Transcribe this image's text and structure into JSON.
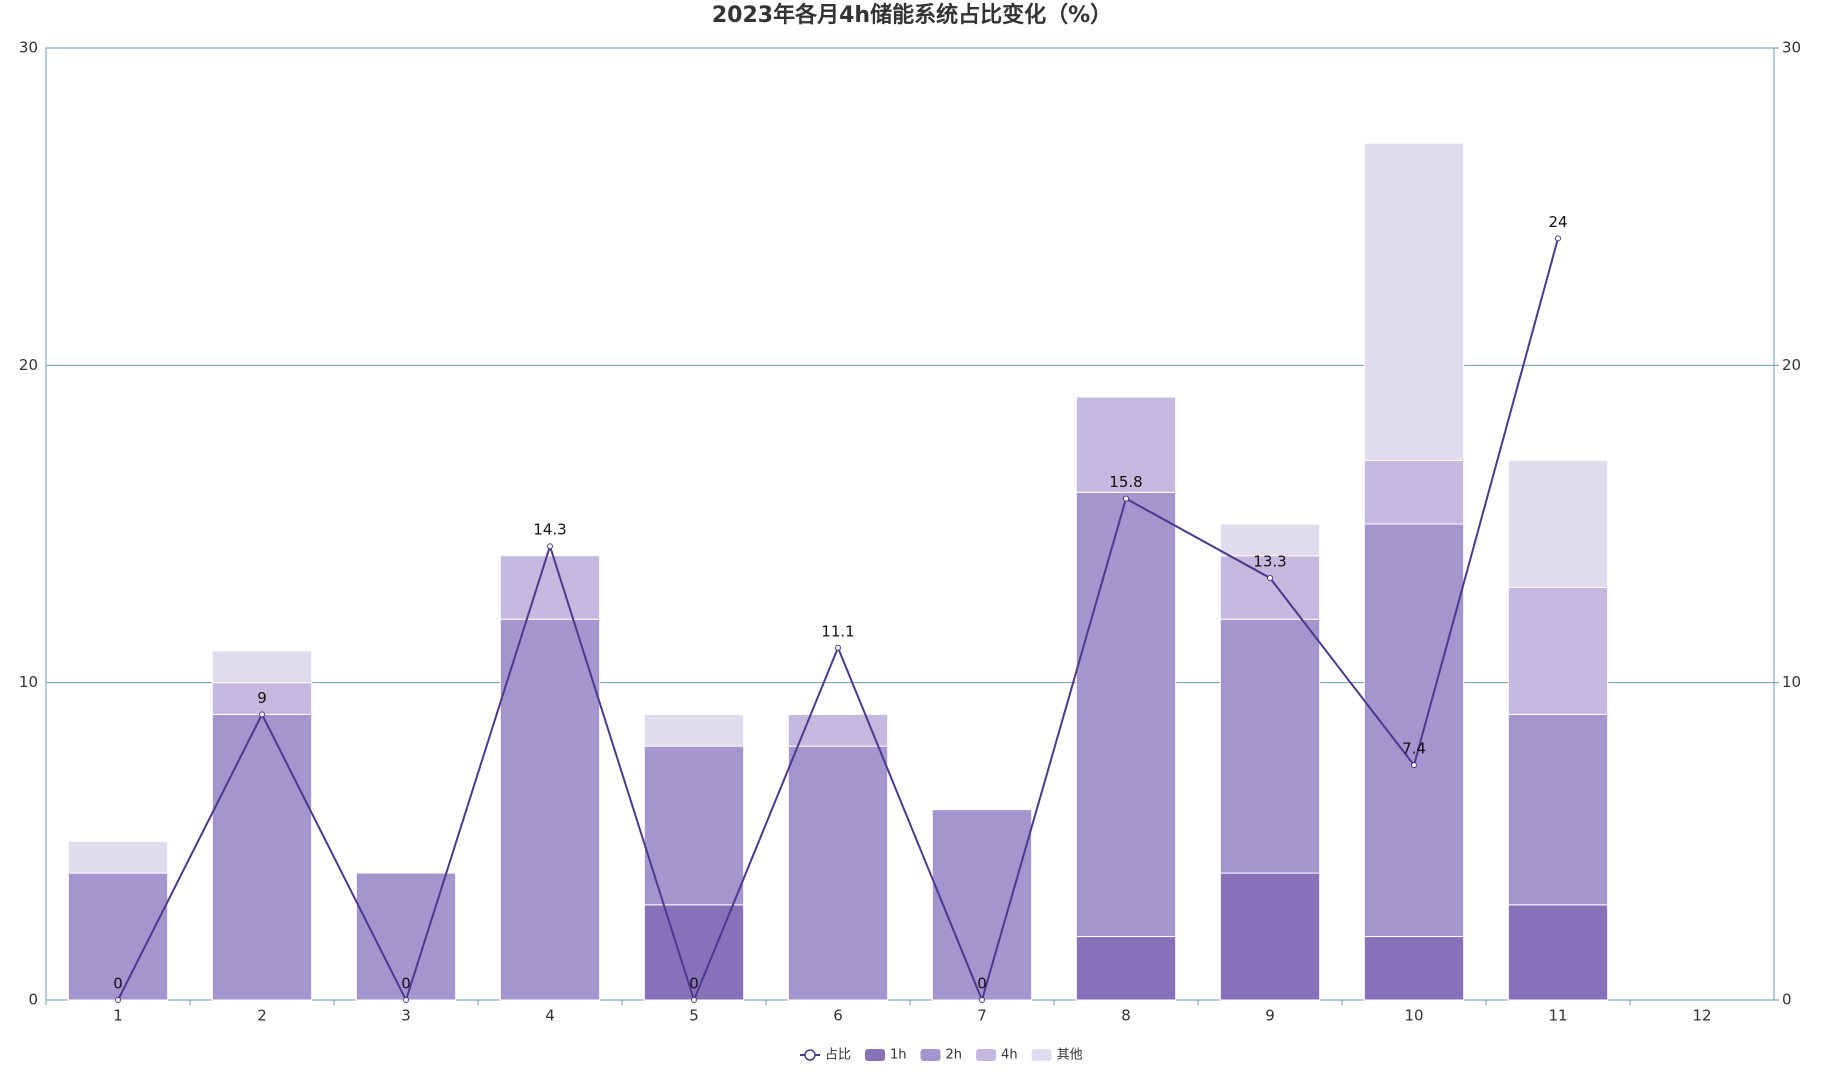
{
  "chart_data": {
    "type": "bar",
    "title": "2023年各月4h储能系统占比变化（%）",
    "categories": [
      "1",
      "2",
      "3",
      "4",
      "5",
      "6",
      "7",
      "8",
      "9",
      "10",
      "11",
      "12"
    ],
    "series": [
      {
        "name": "1h",
        "color": "#8771b8",
        "values": [
          0,
          0,
          0,
          0,
          3,
          0,
          0,
          2,
          4,
          2,
          3,
          null
        ]
      },
      {
        "name": "2h",
        "color": "#a395ce",
        "values": [
          4,
          9,
          4,
          12,
          5,
          8,
          6,
          14,
          8,
          13,
          6,
          null
        ]
      },
      {
        "name": "4h",
        "color": "#c3b8de",
        "values": [
          0,
          1,
          0,
          2,
          0,
          1,
          0,
          3,
          2,
          2,
          4,
          null
        ]
      },
      {
        "name": "其他",
        "color": "#e0dbed",
        "values": [
          1,
          1,
          0,
          0,
          1,
          0,
          0,
          0,
          1,
          10,
          4,
          null
        ]
      },
      {
        "name": "占比",
        "color": "#4b3a8c",
        "type": "line",
        "axis": "y2",
        "values": [
          0,
          9,
          0,
          14.3,
          0,
          11.1,
          0,
          15.8,
          13.3,
          7.4,
          24,
          null
        ]
      }
    ],
    "ylim": [
      0,
      30
    ],
    "yticks": [
      0,
      10,
      20,
      30
    ],
    "y2lim": [
      0,
      30
    ],
    "y2ticks": [
      0,
      10,
      20,
      30
    ],
    "grid": true,
    "legend": "bottom"
  }
}
